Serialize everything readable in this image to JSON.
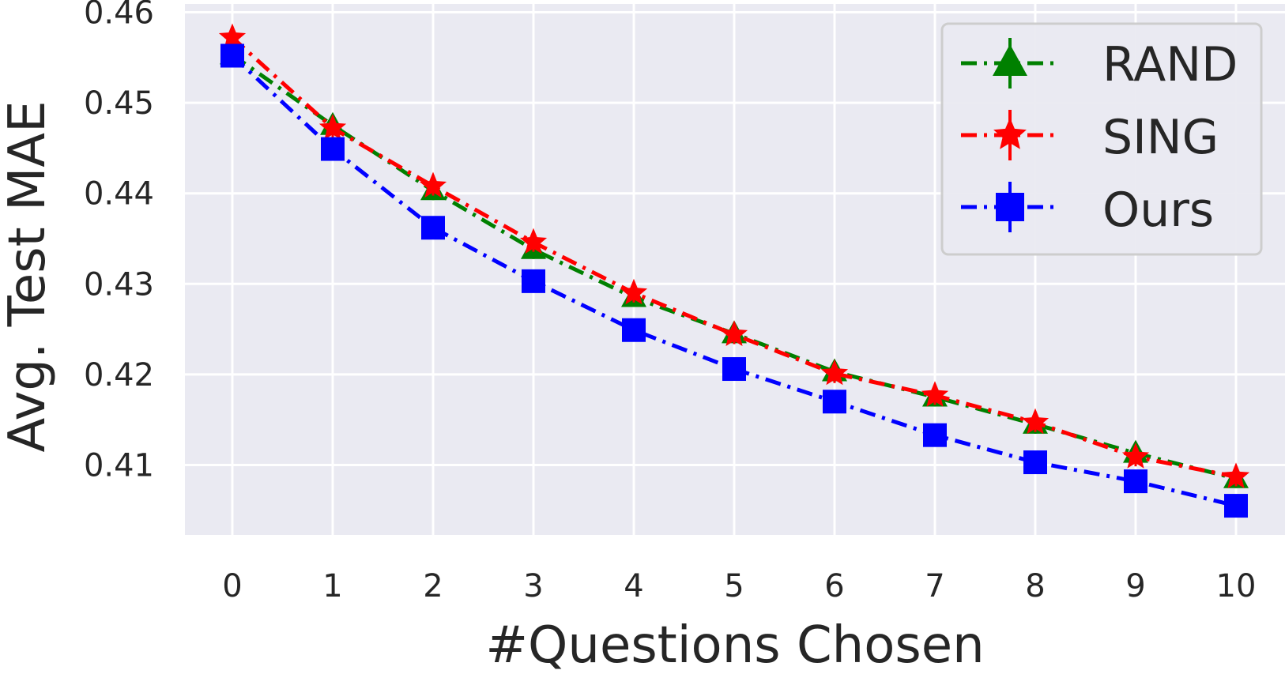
{
  "chart_data": {
    "type": "line",
    "xlabel": "#Questions Chosen",
    "ylabel": "Avg. Test MAE",
    "x": [
      0,
      1,
      2,
      3,
      4,
      5,
      6,
      7,
      8,
      9,
      10
    ],
    "xticks": [
      "0",
      "1",
      "2",
      "3",
      "4",
      "5",
      "6",
      "7",
      "8",
      "9",
      "10"
    ],
    "yticks": [
      "0.41",
      "0.42",
      "0.43",
      "0.44",
      "0.45",
      "0.46"
    ],
    "xlim": [
      -0.5,
      10.5
    ],
    "ylim": [
      0.4045,
      0.4605
    ],
    "grid": true,
    "legend_position": "top-right",
    "series": [
      {
        "name": "RAND",
        "color": "#008000",
        "marker": "triangle",
        "values": [
          0.4553,
          0.4475,
          0.4403,
          0.4338,
          0.4285,
          0.4245,
          0.4203,
          0.4175,
          0.4145,
          0.4113,
          0.4085
        ]
      },
      {
        "name": "SING",
        "color": "#ff0000",
        "marker": "star",
        "values": [
          0.4572,
          0.4472,
          0.4408,
          0.4346,
          0.429,
          0.4244,
          0.4201,
          0.4177,
          0.4147,
          0.4109,
          0.4087
        ]
      },
      {
        "name": "Ours",
        "color": "#0000ff",
        "marker": "square",
        "values": [
          0.4552,
          0.4449,
          0.4362,
          0.4303,
          0.4249,
          0.4206,
          0.417,
          0.4133,
          0.4103,
          0.4082,
          0.4055
        ]
      }
    ]
  }
}
